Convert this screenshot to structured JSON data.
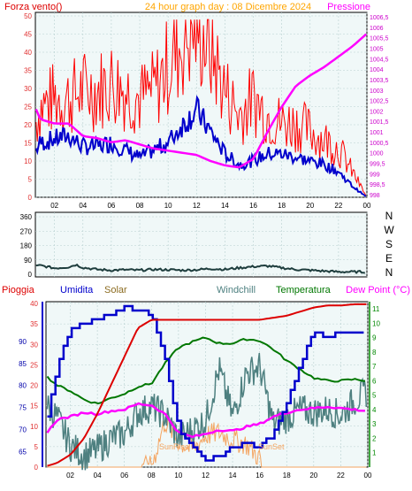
{
  "top_panel": {
    "left_title": "Forza vento()",
    "center_title": "24 hour graph day : 08 Dicembre 2024",
    "right_title": "Pressione"
  },
  "direction_panel": {
    "compass": [
      "N",
      "W",
      "S",
      "E",
      "N"
    ]
  },
  "bottom_panel": {
    "legend": {
      "pioggia": "Pioggia",
      "umidita": "Umidita",
      "solar": "Solar",
      "windchill": "Windchill",
      "temperatura": "Temperatura",
      "dewpoint": "Dew Point (°C)"
    },
    "annotations": {
      "sunrise": "SunRise",
      "sunset": "SunSet"
    }
  },
  "colors": {
    "wind_gust": "#ff0000",
    "wind_avg": "#0000cc",
    "pressure": "#ff00ff",
    "direction": "#1e3d3d",
    "rain": "#dd0000",
    "humidity": "#0000cc",
    "solar": "#f4a460",
    "windchill": "#4e8080",
    "temperature": "#007700",
    "dewpoint": "#ff00ff",
    "plot_bg": "#f0f8f8",
    "grid": "#b8d0d0",
    "left_axis": "#e03030",
    "right_axis_top": "#cc00cc",
    "right_axis_bottom": "#008800"
  },
  "chart_data": [
    {
      "type": "line",
      "x_ticks": [
        "02",
        "04",
        "06",
        "08",
        "10",
        "12",
        "14",
        "16",
        "18",
        "20",
        "22",
        "00"
      ],
      "y_left_ticks": [
        "0",
        "5",
        "10",
        "15",
        "20",
        "25",
        "30",
        "35",
        "40",
        "45",
        "50"
      ],
      "y_left_range": [
        0,
        50
      ],
      "y_right_ticks": [
        "998",
        "998,5",
        "999",
        "999,5",
        "1000",
        "1000,5",
        "1001",
        "1001,5",
        "1002",
        "1002,5",
        "1003",
        "1003,5",
        "1004",
        "1004,5",
        "1005",
        "1005,5",
        "1006",
        "1006,5"
      ],
      "y_right_range": [
        998,
        1006.5
      ],
      "hours": [
        0,
        1,
        2,
        3,
        4,
        5,
        6,
        7,
        8,
        9,
        10,
        11,
        12,
        13,
        14,
        15,
        16,
        17,
        18,
        19,
        20,
        21,
        22,
        23,
        24
      ],
      "series": [
        {
          "name": "Forza vento",
          "axis": "left",
          "values": [
            10,
            22,
            24,
            24,
            26,
            26,
            28,
            26,
            24,
            26,
            32,
            38,
            42,
            36,
            26,
            20,
            24,
            20,
            18,
            18,
            16,
            14,
            12,
            6,
            0
          ]
        },
        {
          "axis": "left",
          "values": [
            9,
            15,
            16,
            17,
            14,
            14,
            15,
            13,
            11,
            13,
            15,
            20,
            24,
            18,
            12,
            9,
            10,
            12,
            12,
            11,
            10,
            9,
            7,
            3,
            0
          ]
        },
        {
          "name": "Pressione",
          "axis": "right",
          "values": [
            1003.2,
            1001.6,
            1001.4,
            1001.4,
            1000.8,
            1000.7,
            1000.5,
            1000.6,
            1000.4,
            1000.2,
            1000.1,
            1000.0,
            999.9,
            999.6,
            999.4,
            999.3,
            999.7,
            1001.0,
            1002.2,
            1003.2,
            1003.7,
            1004.1,
            1004.6,
            1005.1,
            1005.7
          ]
        }
      ]
    },
    {
      "type": "line",
      "x_ticks": [
        "02",
        "04",
        "06",
        "08",
        "10",
        "12",
        "14",
        "16",
        "18",
        "20",
        "22",
        "00"
      ],
      "y_ticks": [
        "0",
        "90",
        "180",
        "270",
        "360"
      ],
      "y_range": [
        0,
        360
      ],
      "hours": [
        0,
        1,
        2,
        3,
        3.5,
        4,
        5,
        6,
        7,
        8,
        9,
        10,
        11,
        12,
        13,
        14,
        15,
        16,
        17,
        18,
        19,
        20,
        21,
        22,
        23,
        24
      ],
      "series": [
        {
          "values": [
            40,
            55,
            38,
            45,
            60,
            42,
            30,
            25,
            28,
            25,
            30,
            28,
            25,
            28,
            35,
            30,
            40,
            48,
            52,
            40,
            30,
            25,
            20,
            15,
            15,
            15
          ]
        }
      ]
    },
    {
      "type": "line",
      "x_ticks": [
        "02",
        "04",
        "06",
        "08",
        "10",
        "12",
        "14",
        "16",
        "18",
        "20",
        "22",
        "00"
      ],
      "y_left_ticks": [
        "0",
        "5",
        "10",
        "15",
        "20",
        "25",
        "30",
        "35",
        "40"
      ],
      "y_left_range": [
        0,
        40
      ],
      "y_humidity_ticks": [
        "65",
        "70",
        "75",
        "80",
        "85",
        "90"
      ],
      "y_humidity_range": [
        61.5,
        99
      ],
      "y_right_ticks": [
        "1",
        "2",
        "3",
        "4",
        "5",
        "6",
        "7",
        "8",
        "9",
        "10",
        "11"
      ],
      "y_right_range": [
        0,
        11.5
      ],
      "hours": [
        0,
        1,
        2,
        3,
        4,
        5,
        6,
        7,
        8,
        9,
        10,
        11,
        12,
        13,
        14,
        15,
        16,
        17,
        18,
        19,
        20,
        21,
        22,
        23,
        24
      ],
      "series": [
        {
          "name": "Pioggia",
          "axis": "left",
          "values": [
            0,
            1,
            3,
            7,
            13,
            20,
            27,
            34,
            36,
            36,
            36,
            36,
            36,
            36,
            36,
            36,
            36,
            36.5,
            37,
            38,
            39,
            39.5,
            39.5,
            39.8,
            39.8
          ]
        },
        {
          "name": "Umidita",
          "axis": "humidity",
          "values": [
            68,
            84,
            93,
            94,
            95,
            96,
            98,
            97,
            96,
            86,
            70,
            66,
            63,
            64,
            66,
            67,
            66,
            69,
            76,
            85,
            92,
            91,
            92,
            92,
            92
          ]
        },
        {
          "name": "Temperatura",
          "axis": "right",
          "values": [
            6.5,
            5.7,
            5.3,
            4.7,
            4.4,
            4.8,
            5.1,
            5.6,
            5.8,
            7.2,
            8.3,
            8.7,
            9.0,
            8.6,
            8.6,
            8.9,
            8.8,
            8.2,
            7.4,
            6.8,
            6.2,
            6.0,
            6.0,
            6.1,
            6.0
          ]
        },
        {
          "name": "Windchill",
          "axis": "right",
          "values": [
            4.5,
            3.5,
            1.5,
            0.8,
            1.2,
            2.0,
            2.3,
            3.8,
            4.2,
            3.6,
            2.0,
            2.6,
            3.2,
            6.8,
            3.5,
            6.5,
            7.0,
            3.0,
            3.4,
            4.0,
            3.8,
            4.0,
            3.6,
            4.6,
            5.3
          ]
        },
        {
          "name": "Dew Point (°C)",
          "axis": "right",
          "values": [
            2.0,
            3.3,
            3.5,
            3.8,
            3.7,
            3.9,
            4.0,
            4.4,
            4.3,
            3.7,
            2.4,
            2.1,
            2.3,
            2.6,
            2.5,
            2.8,
            3.0,
            3.5,
            3.8,
            4.0,
            4.1,
            4.2,
            4.1,
            4.0,
            3.9
          ]
        },
        {
          "name": "Solar",
          "axis": "right",
          "values": [
            0,
            0,
            0,
            0,
            0,
            0,
            0,
            0,
            0,
            3.2,
            1.8,
            1.2,
            2.2,
            2.4,
            1.9,
            1.6,
            0.6,
            0,
            0,
            0,
            0,
            0,
            0,
            0,
            0
          ]
        }
      ]
    }
  ]
}
